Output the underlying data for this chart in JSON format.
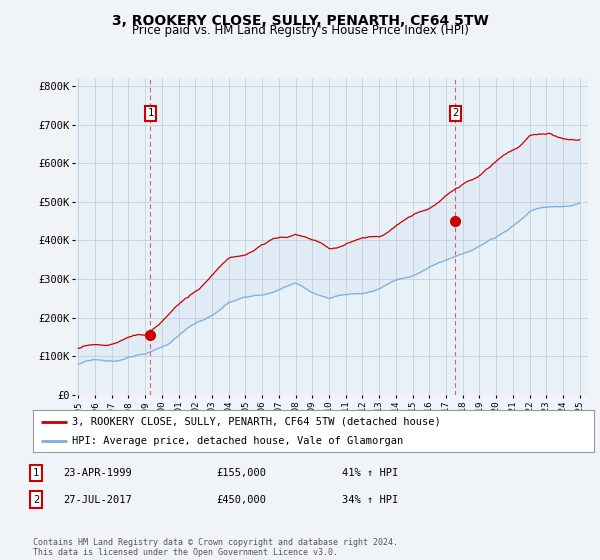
{
  "title": "3, ROOKERY CLOSE, SULLY, PENARTH, CF64 5TW",
  "subtitle": "Price paid vs. HM Land Registry's House Price Index (HPI)",
  "title_fontsize": 10,
  "subtitle_fontsize": 8.5,
  "ylabel_ticks": [
    "£0",
    "£100K",
    "£200K",
    "£300K",
    "£400K",
    "£500K",
    "£600K",
    "£700K",
    "£800K"
  ],
  "ytick_values": [
    0,
    100000,
    200000,
    300000,
    400000,
    500000,
    600000,
    700000,
    800000
  ],
  "ylim": [
    0,
    820000
  ],
  "xlim_start": 1994.8,
  "xlim_end": 2025.5,
  "xtick_years": [
    1995,
    1996,
    1997,
    1998,
    1999,
    2000,
    2001,
    2002,
    2003,
    2004,
    2005,
    2006,
    2007,
    2008,
    2009,
    2010,
    2011,
    2012,
    2013,
    2014,
    2015,
    2016,
    2017,
    2018,
    2019,
    2020,
    2021,
    2022,
    2023,
    2024,
    2025
  ],
  "legend_line1": "3, ROOKERY CLOSE, SULLY, PENARTH, CF64 5TW (detached house)",
  "legend_line2": "HPI: Average price, detached house, Vale of Glamorgan",
  "line1_color": "#cc0000",
  "line2_color": "#7aade0",
  "fill_color": "#dce8f5",
  "purchase1_date": 1999.31,
  "purchase1_price": 155000,
  "purchase1_label": "1",
  "purchase2_date": 2017.56,
  "purchase2_price": 450000,
  "purchase2_label": "2",
  "annotation1_date": "23-APR-1999",
  "annotation1_price": "£155,000",
  "annotation1_pct": "41% ↑ HPI",
  "annotation2_date": "27-JUL-2017",
  "annotation2_price": "£450,000",
  "annotation2_pct": "34% ↑ HPI",
  "footer": "Contains HM Land Registry data © Crown copyright and database right 2024.\nThis data is licensed under the Open Government Licence v3.0.",
  "background_color": "#f0f4f8",
  "plot_background": "#e8f0f8",
  "grid_color": "#c0c8d8"
}
